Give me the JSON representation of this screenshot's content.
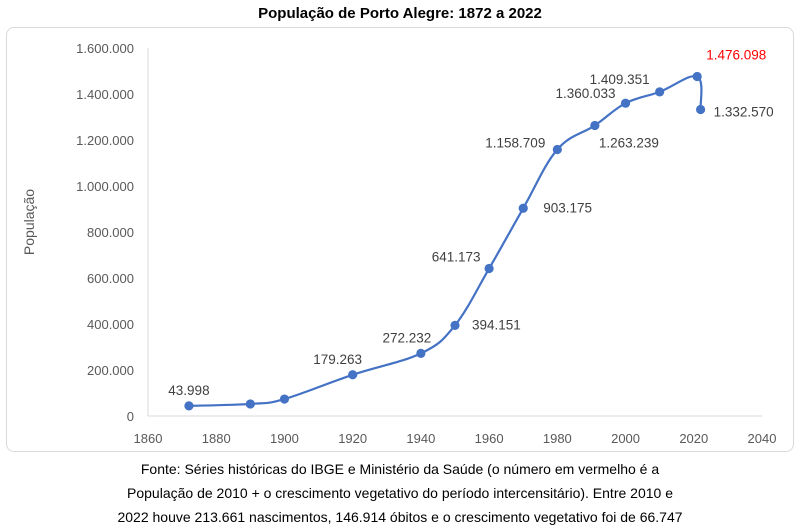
{
  "chart_data": {
    "type": "scatter",
    "title": "População de Porto Alegre: 1872 a 2022",
    "xlabel": "",
    "ylabel": "População",
    "xlim": [
      1860,
      2040
    ],
    "ylim": [
      0,
      1600000
    ],
    "x_ticks": [
      1860,
      1880,
      1900,
      1920,
      1940,
      1960,
      1980,
      2000,
      2020,
      2040
    ],
    "y_ticks": [
      0,
      200000,
      400000,
      600000,
      800000,
      1000000,
      1200000,
      1400000,
      1600000
    ],
    "y_tick_labels": [
      "0",
      "200.000",
      "400.000",
      "600.000",
      "800.000",
      "1.000.000",
      "1.200.000",
      "1.400.000",
      "1.600.000"
    ],
    "smooth_line": true,
    "grid": false,
    "legend": "none",
    "line_color": "#4472C4",
    "highlight_color": "#FF0000",
    "points": [
      {
        "x": 1872,
        "y": 43998,
        "label": "43.998"
      },
      {
        "x": 1890,
        "y": 52421,
        "label": ""
      },
      {
        "x": 1900,
        "y": 73674,
        "label": ""
      },
      {
        "x": 1920,
        "y": 179263,
        "label": "179.263"
      },
      {
        "x": 1940,
        "y": 272232,
        "label": "272.232"
      },
      {
        "x": 1950,
        "y": 394151,
        "label": "394.151"
      },
      {
        "x": 1960,
        "y": 641173,
        "label": "641.173"
      },
      {
        "x": 1970,
        "y": 903175,
        "label": "903.175"
      },
      {
        "x": 1980,
        "y": 1158709,
        "label": "1.158.709"
      },
      {
        "x": 1991,
        "y": 1263239,
        "label": "1.263.239"
      },
      {
        "x": 2000,
        "y": 1360033,
        "label": "1.360.033"
      },
      {
        "x": 2010,
        "y": 1409351,
        "label": "1.409.351"
      },
      {
        "x": 2021,
        "y": 1476098,
        "label": "1.476.098",
        "highlight": true
      },
      {
        "x": 2022,
        "y": 1332570,
        "label": "1.332.570"
      }
    ]
  },
  "caption": {
    "line1": "Fonte: Séries históricas do IBGE e Ministério da Saúde (o número em vermelho é a",
    "line2": "População  de 2010 + o crescimento vegetativo do período intercensitário). Entre 2010 e",
    "line3": "2022 houve 213.661 nascimentos,  146.914 óbitos  e o crescimento vegetativo foi de 66.747"
  }
}
